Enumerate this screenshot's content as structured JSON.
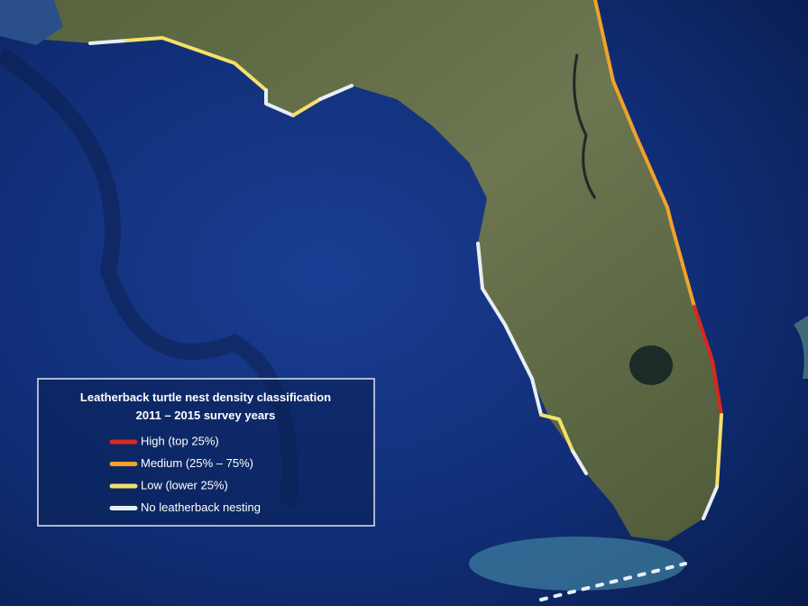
{
  "legend": {
    "title": [
      "Leatherback turtle nest density classification",
      "2011 – 2015 survey years"
    ],
    "items": [
      {
        "label": "High (top 25%)",
        "color": "#d9281c"
      },
      {
        "label": "Medium (25% – 75%)",
        "color": "#f0a22a"
      },
      {
        "label": "Low (lower 25%)",
        "color": "#f4e06a"
      },
      {
        "label": "No leatherback nesting",
        "color": "#e8eef4"
      }
    ]
  }
}
